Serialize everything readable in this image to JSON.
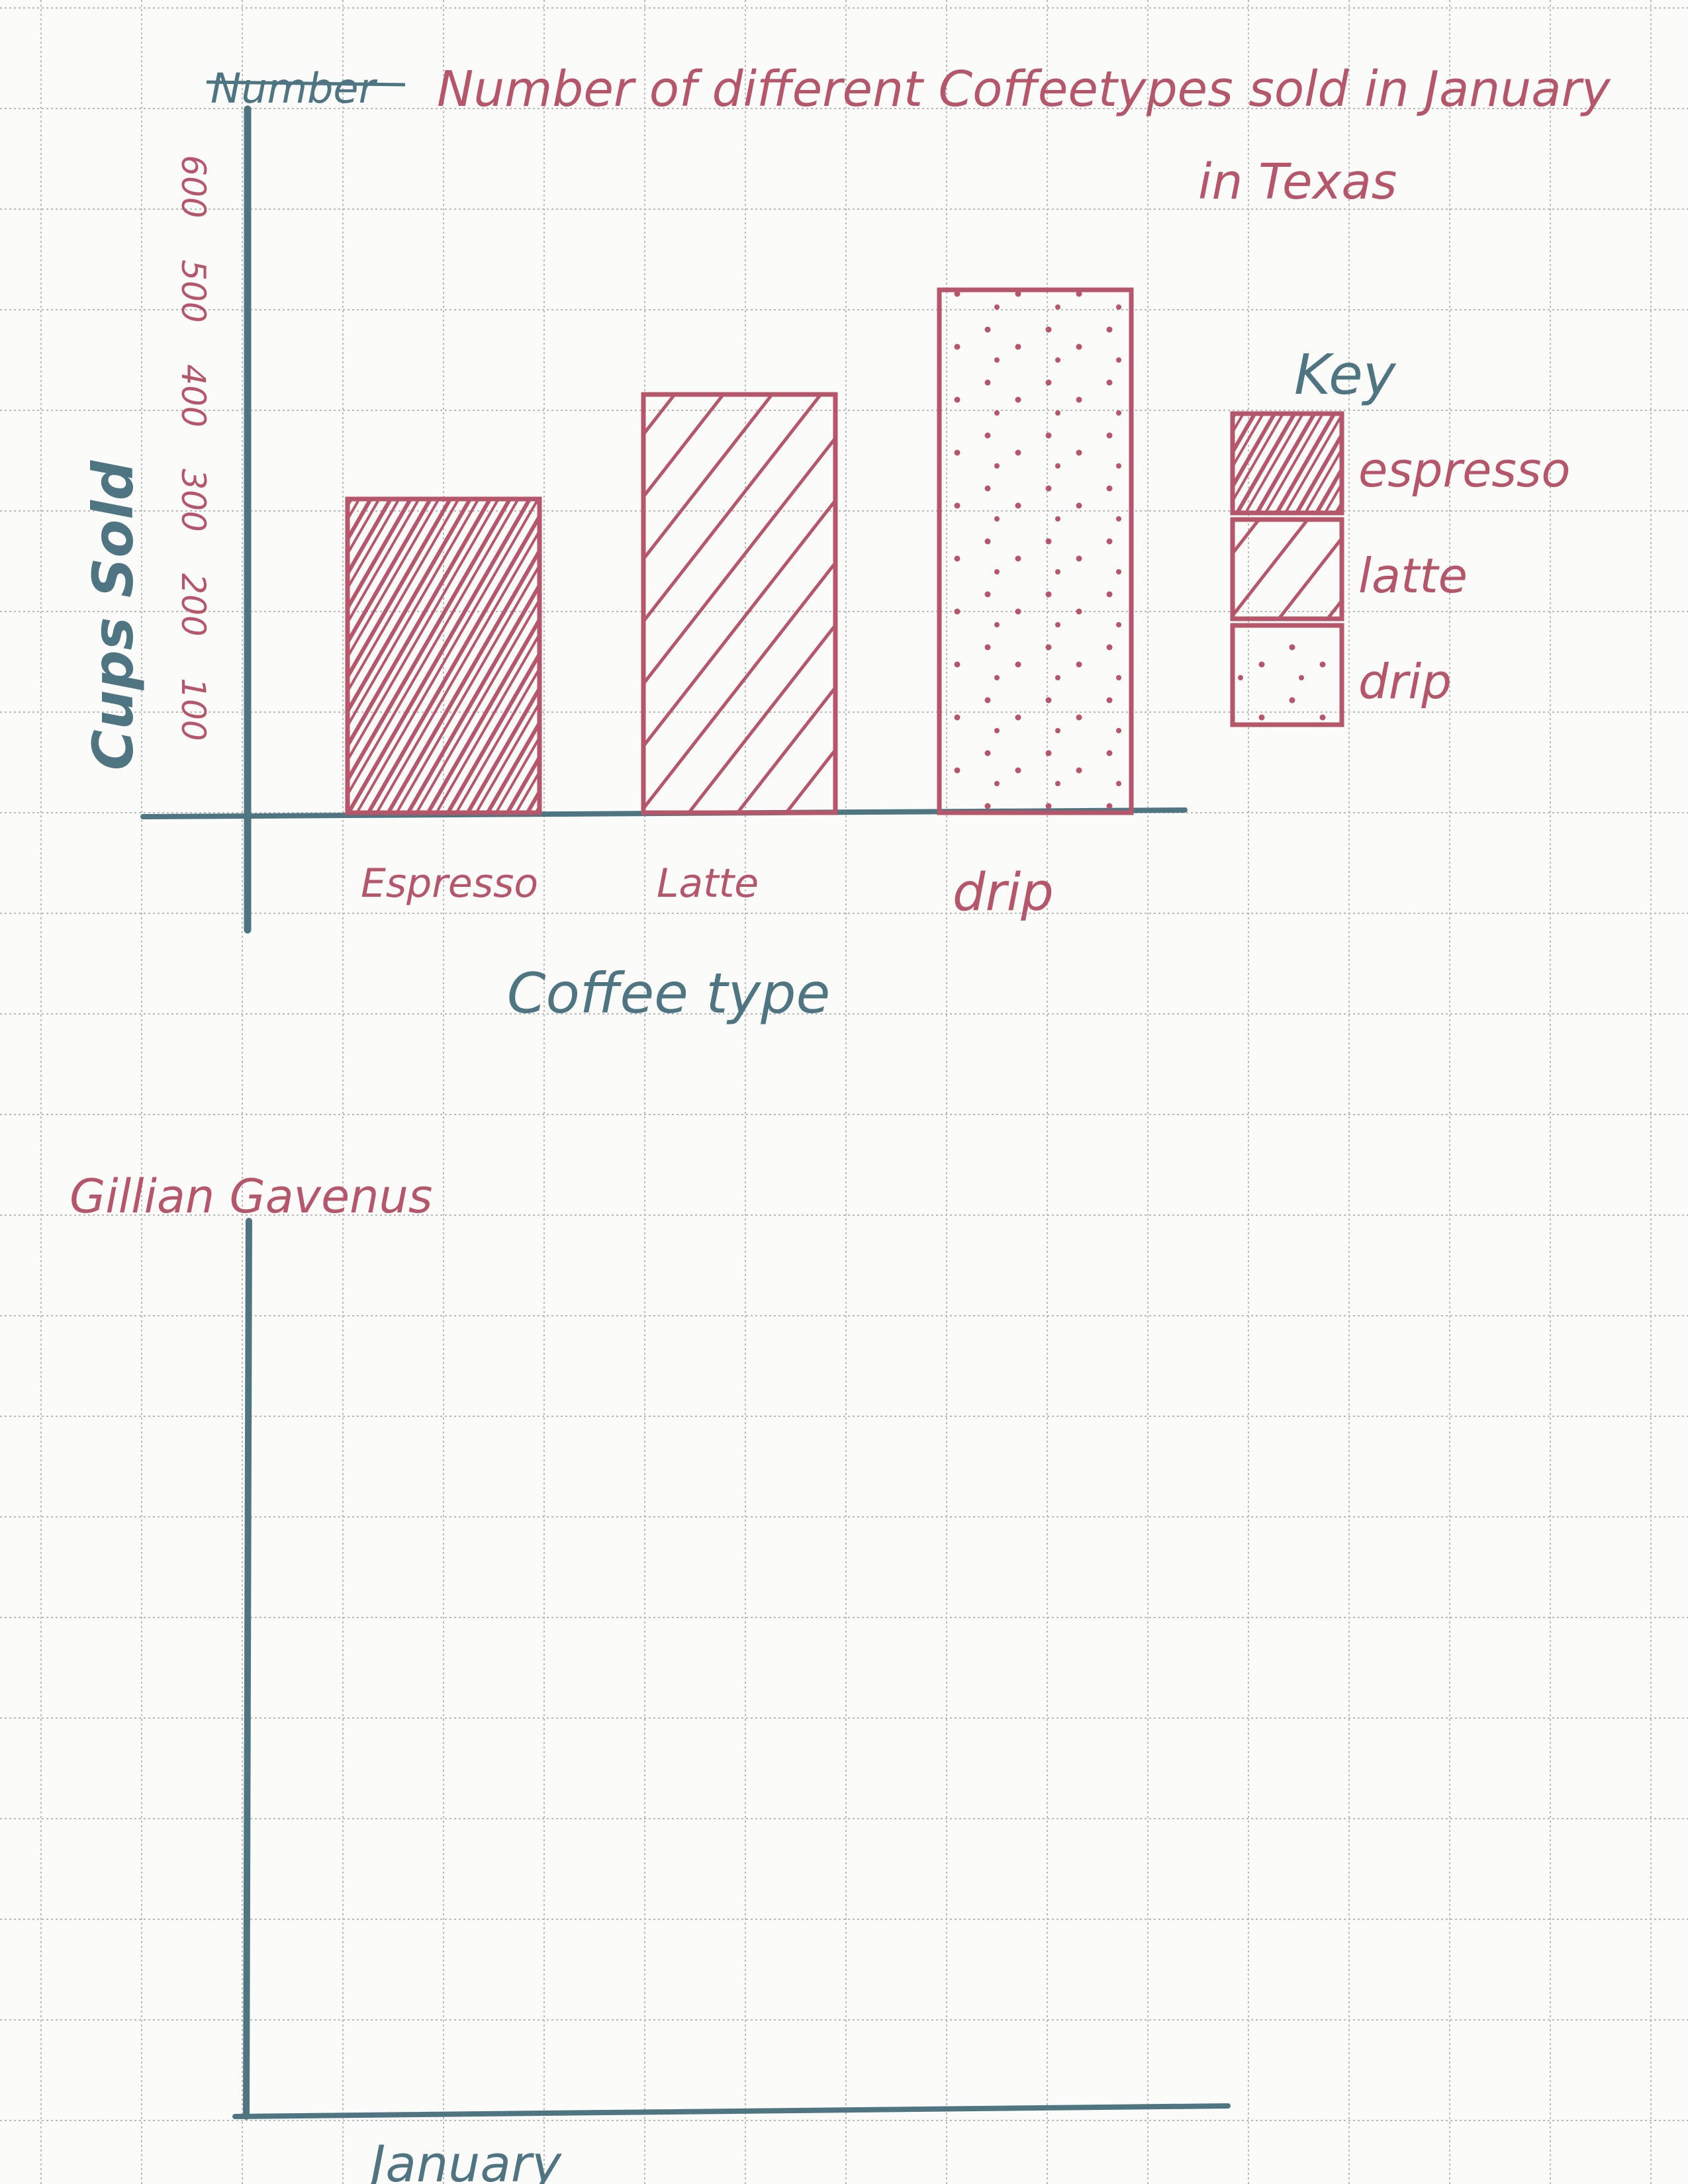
{
  "colors": {
    "red_ink": "#b5566b",
    "blue_ink": "#4e7581",
    "grid": "#b9b9b9",
    "paper": "#fbfbf9"
  },
  "page": {
    "struck_word": "Number",
    "author": "Gillian Gavenus",
    "second_chart_xlabel": "January"
  },
  "chart_data": [
    {
      "type": "bar",
      "title": "Number of different Coffeetypes sold in January",
      "subtitle": "in Texas",
      "xlabel": "Coffee type",
      "ylabel": "Cups Sold",
      "categories": [
        "Espresso",
        "Latte",
        "drip"
      ],
      "values": [
        300,
        400,
        500
      ],
      "fill_patterns": [
        "cross-hatch",
        "hatch",
        "dots"
      ],
      "ylim": [
        0,
        600
      ],
      "yticks": [
        "100",
        "200",
        "300",
        "400",
        "500",
        "600"
      ],
      "grid": true,
      "legend": {
        "title": "Key",
        "placement": "right",
        "entries": [
          "espresso",
          "latte",
          "drip"
        ]
      }
    },
    {
      "type": "bar",
      "xlabel": "January",
      "categories": [],
      "values": []
    }
  ]
}
